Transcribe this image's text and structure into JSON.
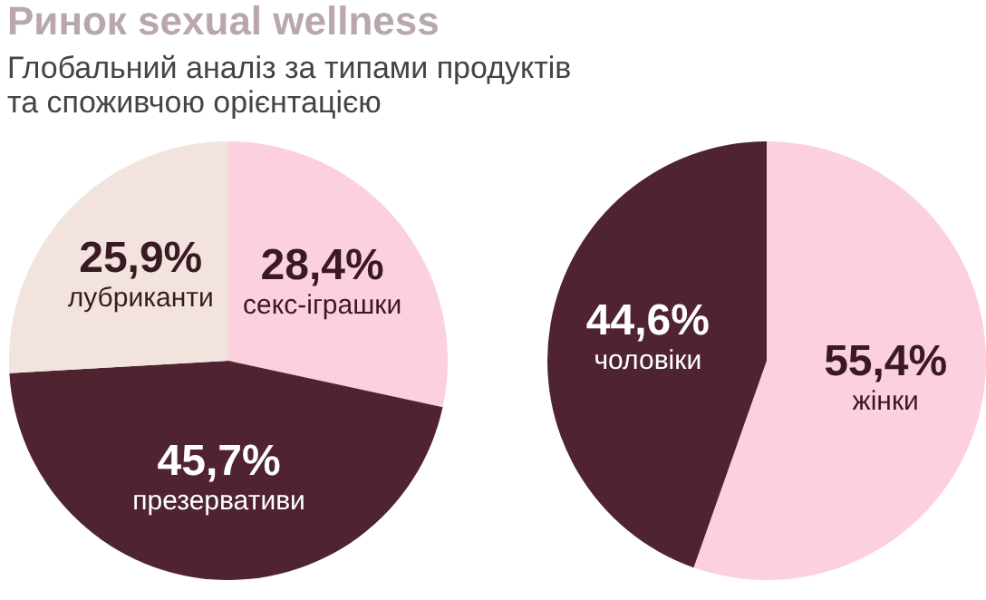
{
  "chart_data": [
    {
      "type": "pie",
      "title": "Ринок sexual wellness",
      "subtitle": "Глобальний аналіз за типами продуктів\nта споживчою орієнтацією",
      "categories": [
        "секс-іграшки",
        "презервативи",
        "лубриканти"
      ],
      "values": [
        28.4,
        45.7,
        25.9
      ],
      "colors": [
        "#fcd0dd",
        "#4f2330",
        "#f2e3df"
      ],
      "value_labels": [
        "28,4%",
        "45,7%",
        "25,9%"
      ],
      "legend": false
    },
    {
      "type": "pie",
      "categories": [
        "жінки",
        "чоловіки"
      ],
      "values": [
        55.4,
        44.6
      ],
      "colors": [
        "#fcd0dd",
        "#4f2330"
      ],
      "value_labels": [
        "55,4%",
        "44,6%"
      ],
      "legend": false
    }
  ]
}
